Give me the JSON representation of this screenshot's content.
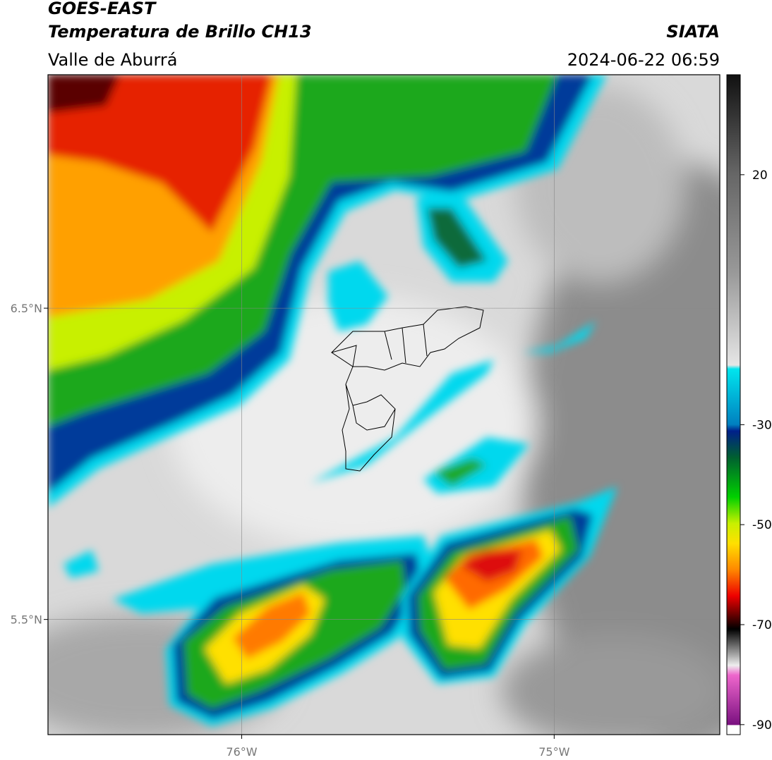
{
  "header": {
    "title": "GOES-EAST",
    "subtitle": "Temperatura de Brillo CH13",
    "region": "Valle de Aburrá",
    "source": "SIATA",
    "datetime": "2024-06-22 06:59"
  },
  "map": {
    "xlim": [
      -76.62,
      -74.47
    ],
    "ylim": [
      5.13,
      7.25
    ],
    "xticks": [
      {
        "value": -76,
        "label": "76°W"
      },
      {
        "value": -75,
        "label": "75°W"
      }
    ],
    "yticks": [
      {
        "value": 6.5,
        "label": "6.5°N"
      },
      {
        "value": 5.5,
        "label": "5.5°N"
      }
    ],
    "grid": true
  },
  "colorbar": {
    "lim": [
      -92,
      40
    ],
    "ticks": [
      20,
      -30,
      -50,
      -70,
      -90
    ]
  }
}
